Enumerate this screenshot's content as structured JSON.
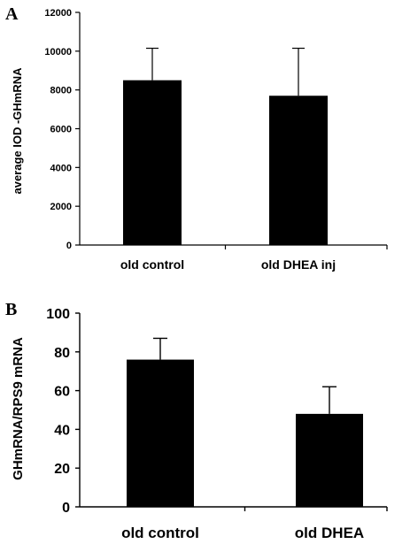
{
  "chart_data": [
    {
      "panel": "A",
      "type": "bar",
      "categories": [
        "old control",
        "old DHEA inj"
      ],
      "values": [
        8500,
        7700
      ],
      "error_upper": [
        10150,
        10150
      ],
      "ylabel": "average IOD -GHmRNA",
      "ylim": [
        0,
        12000
      ],
      "yticks": [
        "0",
        "2000",
        "4000",
        "6000",
        "8000",
        "10000",
        "12000"
      ],
      "bar_color": "#000000",
      "grid": false
    },
    {
      "panel": "B",
      "type": "bar",
      "categories": [
        "old control",
        "old DHEA"
      ],
      "values": [
        76,
        48
      ],
      "error_upper": [
        87,
        62
      ],
      "ylabel": "GHmRNA/RPS9 mRNA",
      "ylim": [
        0,
        100
      ],
      "yticks": [
        "0",
        "20",
        "40",
        "60",
        "80",
        "100"
      ],
      "bar_color": "#000000",
      "grid": false
    }
  ]
}
